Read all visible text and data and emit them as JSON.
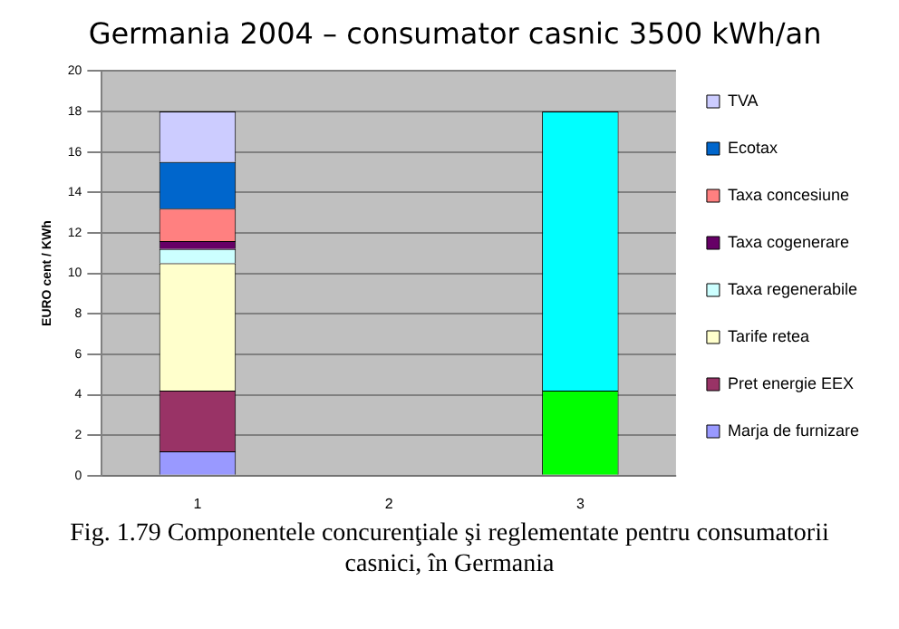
{
  "chart_data": {
    "type": "bar",
    "title": "Germania 2004 – consumator casnic 3500 kWh/an",
    "ylabel": "EURO cent / KWh",
    "categories": [
      "1",
      "2",
      "3"
    ],
    "stacked": true,
    "series": [
      {
        "name": "Marja de furnizare",
        "color": "#9999ff",
        "values": [
          1.2,
          null,
          null
        ]
      },
      {
        "name": "Pret energie EEX",
        "color": "#993366",
        "values": [
          3.0,
          null,
          null
        ]
      },
      {
        "name": "Tarife retea",
        "color": "#ffffcc",
        "values": [
          6.3,
          null,
          null
        ]
      },
      {
        "name": "Taxa regenerabile",
        "color": "#ccffff",
        "values": [
          0.7,
          null,
          null
        ]
      },
      {
        "name": "Taxa cogenerare",
        "color": "#660066",
        "values": [
          0.4,
          null,
          null
        ]
      },
      {
        "name": "Taxa concesiune",
        "color": "#ff8080",
        "values": [
          1.6,
          null,
          null
        ]
      },
      {
        "name": "Ecotax",
        "color": "#0066cc",
        "values": [
          2.3,
          null,
          null
        ]
      },
      {
        "name": "TVA",
        "color": "#ccccff",
        "values": [
          2.5,
          null,
          null
        ]
      },
      {
        "color": "#00ff00",
        "values": [
          null,
          null,
          4.2
        ]
      },
      {
        "color": "#00ffff",
        "values": [
          null,
          null,
          13.8
        ]
      }
    ],
    "ylim": [
      0,
      20
    ],
    "yticks": [
      0,
      2,
      4,
      6,
      8,
      10,
      12,
      14,
      16,
      18,
      20
    ],
    "grid": "y",
    "legend": "right",
    "annotations": [
      "Fig. 1.79 Componentele concurenţiale şi reglementate pentru consumatorii casnici, în Germania"
    ]
  }
}
